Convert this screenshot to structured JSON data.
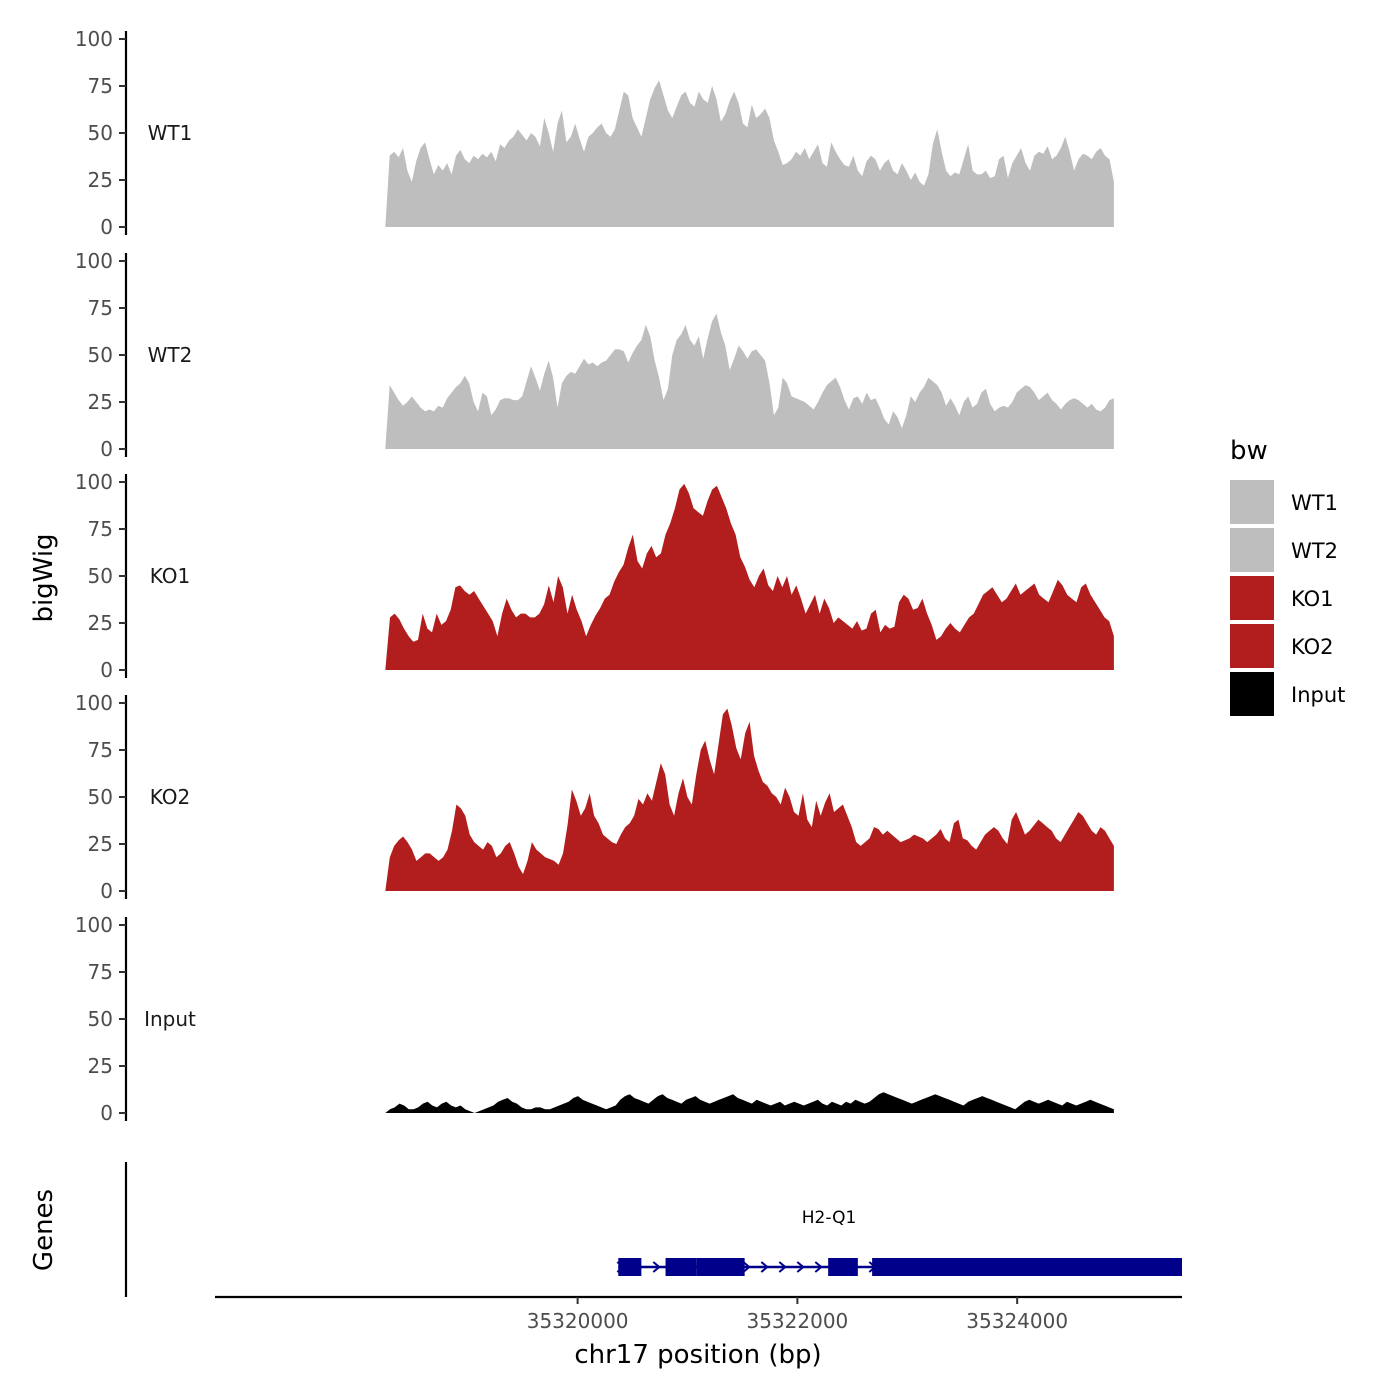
{
  "chart_data": {
    "type": "area",
    "xlabel": "chr17 position (bp)",
    "ylabel": "bigWig",
    "gene_track_label": "Genes",
    "xlim": [
      35316700,
      35325500
    ],
    "ylim": [
      0,
      100
    ],
    "x_ticks": [
      35320000,
      35322000,
      35324000
    ],
    "x_tick_labels": [
      "35320000",
      "35322000",
      "35324000"
    ],
    "y_ticks": [
      0,
      25,
      50,
      75,
      100
    ],
    "y_tick_labels": [
      "0",
      "25",
      "50",
      "75",
      "100"
    ],
    "legend": {
      "title": "bw",
      "items": [
        {
          "label": "WT1",
          "color": "#bebebe"
        },
        {
          "label": "WT2",
          "color": "#bebebe"
        },
        {
          "label": "KO1",
          "color": "#b21e1e"
        },
        {
          "label": "KO2",
          "color": "#b21e1e"
        },
        {
          "label": "Input",
          "color": "#000000"
        }
      ]
    },
    "x_start": 35318250,
    "x_end": 35324880,
    "tracks": [
      {
        "name": "WT1",
        "color": "#bebebe",
        "values": [
          0,
          38,
          40,
          37,
          42,
          30,
          24,
          35,
          42,
          45,
          36,
          28,
          33,
          30,
          34,
          28,
          38,
          41,
          36,
          34,
          38,
          36,
          39,
          37,
          40,
          35,
          44,
          42,
          46,
          48,
          52,
          49,
          46,
          50,
          48,
          43,
          58,
          50,
          40,
          55,
          62,
          45,
          48,
          55,
          47,
          40,
          48,
          50,
          53,
          55,
          50,
          48,
          52,
          62,
          72,
          70,
          58,
          53,
          48,
          58,
          68,
          74,
          78,
          70,
          62,
          58,
          64,
          70,
          72,
          66,
          64,
          72,
          68,
          66,
          75,
          68,
          56,
          60,
          67,
          72,
          66,
          55,
          53,
          65,
          58,
          60,
          63,
          58,
          46,
          40,
          33,
          34,
          36,
          40,
          38,
          42,
          36,
          40,
          44,
          34,
          32,
          45,
          40,
          36,
          33,
          32,
          38,
          30,
          27,
          35,
          38,
          36,
          30,
          34,
          36,
          30,
          28,
          34,
          30,
          25,
          29,
          24,
          22,
          28,
          44,
          52,
          40,
          30,
          27,
          29,
          28,
          36,
          44,
          30,
          28,
          28,
          30,
          26,
          27,
          36,
          38,
          26,
          34,
          38,
          42,
          34,
          30,
          38,
          40,
          39,
          43,
          36,
          38,
          42,
          48,
          40,
          30,
          36,
          39,
          38,
          36,
          40,
          42,
          38,
          36,
          24
        ]
      },
      {
        "name": "WT2",
        "color": "#bebebe",
        "values": [
          0,
          34,
          30,
          26,
          23,
          25,
          28,
          25,
          22,
          20,
          21,
          20,
          23,
          22,
          27,
          30,
          33,
          35,
          39,
          35,
          25,
          20,
          30,
          28,
          18,
          21,
          26,
          27,
          27,
          26,
          26,
          28,
          36,
          44,
          38,
          31,
          40,
          47,
          38,
          22,
          35,
          39,
          41,
          40,
          44,
          48,
          45,
          46,
          44,
          46,
          47,
          50,
          53,
          53,
          52,
          46,
          51,
          55,
          58,
          66,
          60,
          47,
          38,
          26,
          32,
          50,
          58,
          61,
          66,
          58,
          55,
          60,
          48,
          59,
          68,
          72,
          62,
          55,
          42,
          48,
          55,
          52,
          48,
          52,
          53,
          50,
          47,
          35,
          18,
          22,
          38,
          35,
          28,
          27,
          26,
          25,
          23,
          21,
          25,
          30,
          34,
          36,
          38,
          33,
          26,
          21,
          27,
          28,
          24,
          30,
          26,
          27,
          22,
          16,
          13,
          20,
          17,
          11,
          18,
          28,
          25,
          30,
          33,
          38,
          36,
          34,
          30,
          23,
          27,
          23,
          18,
          25,
          28,
          22,
          24,
          30,
          32,
          24,
          20,
          22,
          23,
          22,
          25,
          30,
          32,
          34,
          33,
          30,
          26,
          28,
          30,
          26,
          24,
          21,
          24,
          26,
          27,
          26,
          24,
          22,
          24,
          21,
          20,
          22,
          26,
          27
        ]
      },
      {
        "name": "KO1",
        "color": "#b21e1e",
        "values": [
          0,
          28,
          30,
          27,
          22,
          18,
          15,
          16,
          30,
          22,
          20,
          30,
          24,
          26,
          32,
          44,
          45,
          42,
          40,
          42,
          38,
          34,
          30,
          26,
          18,
          30,
          38,
          32,
          28,
          30,
          30,
          28,
          28,
          30,
          35,
          45,
          36,
          50,
          44,
          30,
          40,
          32,
          26,
          18,
          24,
          29,
          33,
          38,
          40,
          47,
          52,
          56,
          65,
          72,
          58,
          54,
          62,
          66,
          60,
          62,
          72,
          78,
          86,
          96,
          99,
          94,
          86,
          84,
          82,
          90,
          96,
          98,
          92,
          86,
          78,
          72,
          60,
          55,
          48,
          44,
          50,
          54,
          45,
          42,
          50,
          44,
          50,
          40,
          45,
          38,
          30,
          35,
          40,
          30,
          38,
          33,
          25,
          28,
          26,
          24,
          22,
          26,
          21,
          22,
          30,
          32,
          20,
          24,
          22,
          23,
          36,
          40,
          38,
          32,
          33,
          38,
          30,
          24,
          16,
          18,
          22,
          25,
          22,
          20,
          24,
          28,
          30,
          35,
          40,
          42,
          44,
          40,
          36,
          38,
          42,
          46,
          40,
          42,
          44,
          46,
          40,
          38,
          36,
          42,
          48,
          45,
          40,
          38,
          36,
          44,
          46,
          40,
          36,
          32,
          28,
          26,
          18
        ]
      },
      {
        "name": "KO2",
        "color": "#b21e1e",
        "values": [
          0,
          18,
          24,
          27,
          29,
          26,
          22,
          16,
          18,
          20,
          20,
          18,
          16,
          18,
          22,
          32,
          46,
          44,
          40,
          30,
          26,
          24,
          22,
          26,
          24,
          18,
          20,
          24,
          26,
          20,
          13,
          9,
          16,
          26,
          22,
          20,
          18,
          17,
          16,
          14,
          20,
          35,
          54,
          48,
          40,
          44,
          52,
          40,
          36,
          30,
          28,
          26,
          25,
          30,
          34,
          36,
          40,
          49,
          46,
          52,
          48,
          58,
          68,
          62,
          46,
          40,
          52,
          60,
          50,
          46,
          62,
          75,
          80,
          70,
          62,
          78,
          94,
          97,
          88,
          76,
          70,
          84,
          90,
          72,
          64,
          58,
          56,
          52,
          50,
          46,
          55,
          50,
          42,
          40,
          52,
          38,
          34,
          48,
          40,
          47,
          52,
          42,
          44,
          46,
          40,
          34,
          26,
          24,
          26,
          28,
          34,
          33,
          30,
          32,
          30,
          28,
          26,
          27,
          28,
          30,
          29,
          28,
          26,
          28,
          30,
          33,
          28,
          26,
          36,
          38,
          28,
          27,
          24,
          22,
          26,
          30,
          32,
          34,
          32,
          28,
          25,
          38,
          42,
          36,
          30,
          32,
          35,
          38,
          36,
          34,
          32,
          28,
          26,
          30,
          34,
          38,
          42,
          40,
          36,
          32,
          30,
          34,
          32,
          28,
          24
        ]
      },
      {
        "name": "Input",
        "color": "#000000",
        "values": [
          0,
          2,
          3,
          5,
          4,
          2,
          2,
          3,
          5,
          6,
          4,
          3,
          5,
          6,
          4,
          3,
          4,
          2,
          1,
          0,
          1,
          2,
          3,
          4,
          6,
          7,
          8,
          6,
          5,
          3,
          2,
          2,
          3,
          3,
          2,
          2,
          3,
          4,
          5,
          6,
          8,
          9,
          7,
          6,
          5,
          4,
          3,
          2,
          3,
          4,
          7,
          9,
          10,
          8,
          7,
          6,
          5,
          7,
          9,
          10,
          8,
          7,
          6,
          5,
          7,
          8,
          9,
          7,
          6,
          5,
          6,
          7,
          8,
          9,
          10,
          8,
          7,
          6,
          5,
          7,
          6,
          5,
          4,
          5,
          6,
          4,
          5,
          6,
          5,
          4,
          5,
          6,
          7,
          5,
          4,
          6,
          5,
          4,
          6,
          5,
          7,
          6,
          5,
          6,
          8,
          10,
          11,
          10,
          9,
          8,
          7,
          6,
          5,
          6,
          7,
          8,
          9,
          10,
          9,
          8,
          7,
          6,
          5,
          4,
          6,
          7,
          8,
          9,
          8,
          7,
          6,
          5,
          4,
          3,
          2,
          4,
          6,
          7,
          6,
          5,
          6,
          7,
          6,
          5,
          4,
          6,
          5,
          4,
          5,
          6,
          7,
          6,
          5,
          4,
          3,
          2
        ]
      }
    ],
    "gene": {
      "name": "H2-Q1",
      "color": "#00008b",
      "start": 35320370,
      "end": 35325500,
      "strand": "+",
      "exons": [
        [
          35320370,
          35320580
        ],
        [
          35320800,
          35321080
        ],
        [
          35321080,
          35321520
        ],
        [
          35322280,
          35322550
        ],
        [
          35322680,
          35325500
        ]
      ]
    }
  }
}
